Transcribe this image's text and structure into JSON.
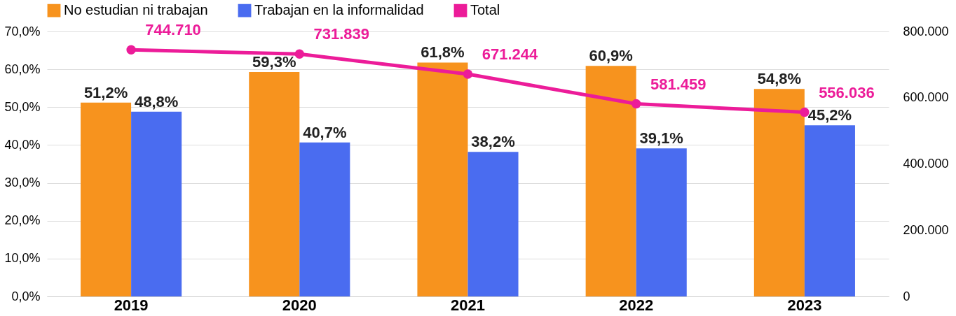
{
  "chart_data": {
    "type": "bar",
    "categories": [
      "2019",
      "2020",
      "2021",
      "2022",
      "2023"
    ],
    "series": [
      {
        "name": "No estudian ni trabajan",
        "color": "#f7931e",
        "values": [
          51.2,
          59.3,
          61.8,
          60.9,
          54.8
        ],
        "value_labels": [
          "51,2%",
          "59,3%",
          "61,8%",
          "60,9%",
          "54,8%"
        ]
      },
      {
        "name": "Trabajan en la informalidad",
        "color": "#4a6cf0",
        "values": [
          48.8,
          40.7,
          38.2,
          39.1,
          45.2
        ],
        "value_labels": [
          "48,8%",
          "40,7%",
          "38,2%",
          "39,1%",
          "45,2%"
        ]
      },
      {
        "name": "Total",
        "type": "line",
        "axis": "y2",
        "color": "#ec1c99",
        "values": [
          744710,
          731839,
          671244,
          581459,
          556036
        ],
        "value_labels": [
          "744.710",
          "731.839",
          "671.244",
          "581.459",
          "556.036"
        ]
      }
    ],
    "ylim": [
      0,
      70
    ],
    "yticks": [
      {
        "value": 0,
        "label": "0,0%"
      },
      {
        "value": 10,
        "label": "10,0%"
      },
      {
        "value": 20,
        "label": "20,0%"
      },
      {
        "value": 30,
        "label": "30,0%"
      },
      {
        "value": 40,
        "label": "40,0%"
      },
      {
        "value": 50,
        "label": "50,0%"
      },
      {
        "value": 60,
        "label": "60,0%"
      },
      {
        "value": 70,
        "label": "70,0%"
      }
    ],
    "y2lim": [
      0,
      800000
    ],
    "y2ticks": [
      0,
      {
        "value": 200000,
        "label": "200.000"
      },
      {
        "value": 400000,
        "label": "400.000"
      },
      {
        "value": 600000,
        "label": "600.000"
      },
      {
        "value": 800000,
        "label": "800.000"
      }
    ],
    "grid": "y",
    "legend": "top",
    "marker": "circle"
  }
}
